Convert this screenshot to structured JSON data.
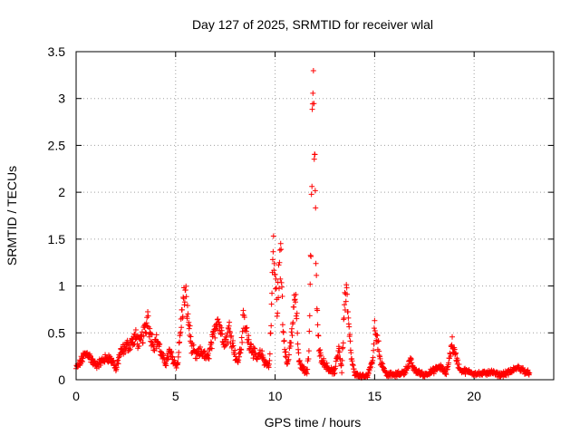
{
  "chart_data": {
    "type": "scatter",
    "title": "Day 127 of 2025, SRMTID for receiver wlal",
    "xlabel": "GPS time / hours",
    "ylabel": "SRMTID / TECUs",
    "xlim": [
      0,
      24
    ],
    "ylim": [
      0,
      3.5
    ],
    "xticks": [
      0,
      5,
      10,
      15,
      20
    ],
    "yticks": [
      0,
      0.5,
      1,
      1.5,
      2,
      2.5,
      3,
      3.5
    ],
    "xtick_labels": [
      "0",
      "5",
      "10",
      "15",
      "20"
    ],
    "ytick_labels": [
      "0",
      "0.5",
      "1",
      "1.5",
      "2",
      "2.5",
      "3",
      "3.5"
    ],
    "grid": true,
    "marker": "+",
    "series": [
      {
        "name": "wlal",
        "color": "#ff0000",
        "anchors": [
          [
            0.0,
            0.12
          ],
          [
            0.2,
            0.18
          ],
          [
            0.4,
            0.26
          ],
          [
            0.6,
            0.28
          ],
          [
            0.8,
            0.2
          ],
          [
            1.0,
            0.15
          ],
          [
            1.3,
            0.2
          ],
          [
            1.6,
            0.24
          ],
          [
            1.9,
            0.18
          ],
          [
            2.0,
            0.1
          ],
          [
            2.2,
            0.28
          ],
          [
            2.5,
            0.35
          ],
          [
            2.8,
            0.4
          ],
          [
            3.0,
            0.45
          ],
          [
            3.2,
            0.38
          ],
          [
            3.5,
            0.55
          ],
          [
            3.6,
            0.7
          ],
          [
            3.7,
            0.5
          ],
          [
            3.9,
            0.38
          ],
          [
            4.1,
            0.42
          ],
          [
            4.3,
            0.25
          ],
          [
            4.5,
            0.18
          ],
          [
            4.7,
            0.3
          ],
          [
            4.9,
            0.2
          ],
          [
            5.1,
            0.15
          ],
          [
            5.25,
            0.55
          ],
          [
            5.4,
            0.85
          ],
          [
            5.5,
            0.9
          ],
          [
            5.6,
            0.7
          ],
          [
            5.8,
            0.35
          ],
          [
            6.0,
            0.25
          ],
          [
            6.3,
            0.3
          ],
          [
            6.6,
            0.22
          ],
          [
            6.9,
            0.45
          ],
          [
            7.1,
            0.68
          ],
          [
            7.3,
            0.5
          ],
          [
            7.5,
            0.4
          ],
          [
            7.7,
            0.55
          ],
          [
            7.9,
            0.35
          ],
          [
            8.1,
            0.18
          ],
          [
            8.3,
            0.35
          ],
          [
            8.4,
            0.65
          ],
          [
            8.5,
            0.55
          ],
          [
            8.7,
            0.4
          ],
          [
            8.9,
            0.3
          ],
          [
            9.1,
            0.22
          ],
          [
            9.3,
            0.28
          ],
          [
            9.5,
            0.18
          ],
          [
            9.7,
            0.15
          ],
          [
            9.8,
            0.6
          ],
          [
            9.9,
            1.4
          ],
          [
            10.0,
            1.1
          ],
          [
            10.1,
            0.75
          ],
          [
            10.2,
            1.15
          ],
          [
            10.3,
            1.3
          ],
          [
            10.4,
            0.55
          ],
          [
            10.6,
            0.15
          ],
          [
            10.8,
            0.4
          ],
          [
            11.0,
            0.9
          ],
          [
            11.1,
            0.6
          ],
          [
            11.2,
            0.18
          ],
          [
            11.4,
            0.12
          ],
          [
            11.6,
            0.08
          ],
          [
            11.7,
            0.3
          ],
          [
            11.8,
            1.5
          ],
          [
            11.85,
            2.4
          ],
          [
            11.9,
            3.05
          ],
          [
            11.95,
            2.8
          ],
          [
            12.0,
            2.1
          ],
          [
            12.05,
            1.4
          ],
          [
            12.1,
            0.8
          ],
          [
            12.2,
            0.3
          ],
          [
            12.4,
            0.2
          ],
          [
            12.6,
            0.14
          ],
          [
            12.8,
            0.1
          ],
          [
            13.0,
            0.08
          ],
          [
            13.2,
            0.35
          ],
          [
            13.35,
            0.1
          ],
          [
            13.5,
            0.85
          ],
          [
            13.6,
            0.88
          ],
          [
            13.7,
            0.55
          ],
          [
            13.85,
            0.2
          ],
          [
            14.0,
            0.06
          ],
          [
            14.3,
            0.04
          ],
          [
            14.6,
            0.03
          ],
          [
            14.9,
            0.2
          ],
          [
            15.0,
            0.55
          ],
          [
            15.1,
            0.48
          ],
          [
            15.3,
            0.2
          ],
          [
            15.6,
            0.06
          ],
          [
            16.0,
            0.05
          ],
          [
            16.5,
            0.08
          ],
          [
            16.8,
            0.2
          ],
          [
            17.0,
            0.1
          ],
          [
            17.5,
            0.05
          ],
          [
            18.0,
            0.1
          ],
          [
            18.3,
            0.14
          ],
          [
            18.6,
            0.06
          ],
          [
            18.9,
            0.4
          ],
          [
            19.0,
            0.3
          ],
          [
            19.3,
            0.1
          ],
          [
            19.8,
            0.08
          ],
          [
            20.3,
            0.06
          ],
          [
            20.8,
            0.08
          ],
          [
            21.3,
            0.05
          ],
          [
            21.8,
            0.08
          ],
          [
            22.2,
            0.13
          ],
          [
            22.5,
            0.1
          ],
          [
            22.8,
            0.06
          ]
        ]
      }
    ]
  }
}
